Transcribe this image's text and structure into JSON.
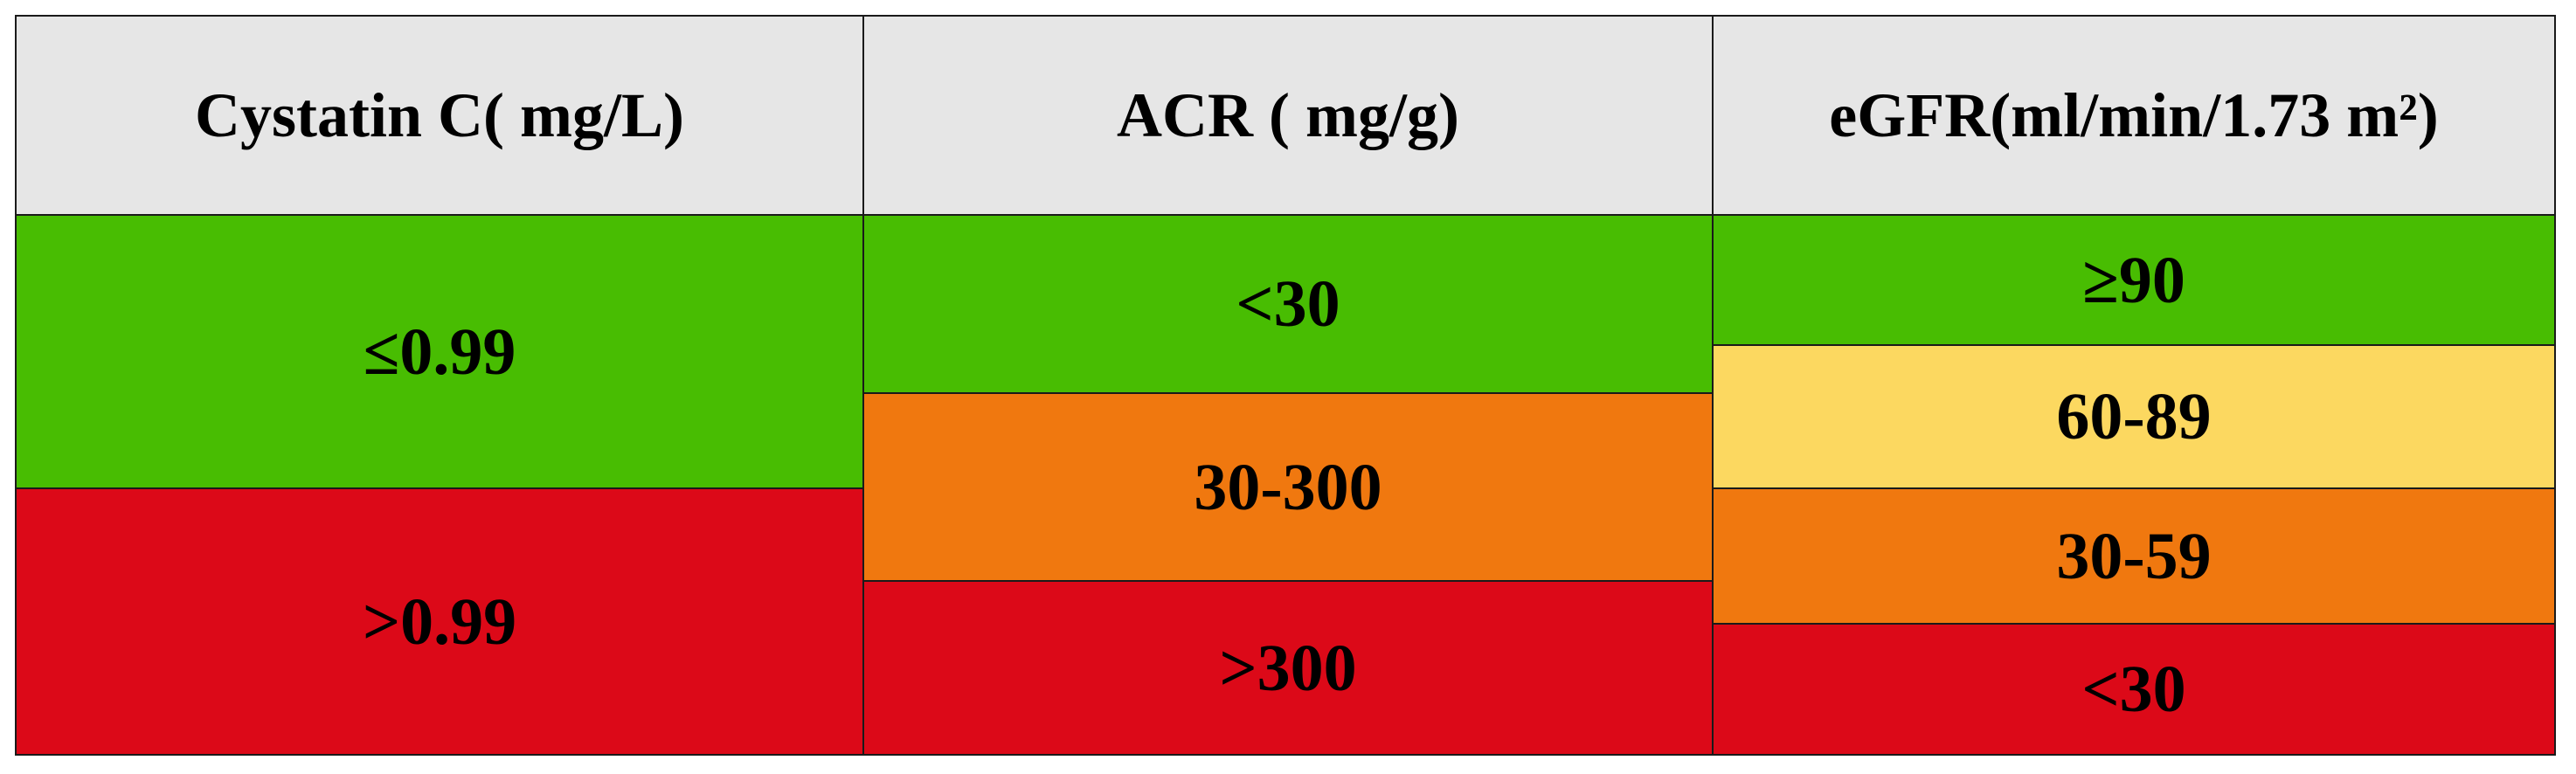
{
  "columns": [
    {
      "header": "Cystatin C( mg/L)",
      "rows": [
        {
          "label": "≤0.99",
          "color": "#48bd02"
        },
        {
          "label": ">0.99",
          "color": "#dc0918"
        }
      ]
    },
    {
      "header": "ACR ( mg/g)",
      "rows": [
        {
          "label": "<30",
          "color": "#48bd02"
        },
        {
          "label": "30-300",
          "color": "#f0780f"
        },
        {
          "label": ">300",
          "color": "#dc0918"
        }
      ]
    },
    {
      "header": "eGFR(ml/min/1.73 m²)",
      "rows": [
        {
          "label": "≥90",
          "color": "#48bd02"
        },
        {
          "label": "60-89",
          "color": "#fcd860"
        },
        {
          "label": "30-59",
          "color": "#f0780f"
        },
        {
          "label": "<30",
          "color": "#dc0918"
        }
      ]
    }
  ],
  "header_background": "#e6e6e6"
}
